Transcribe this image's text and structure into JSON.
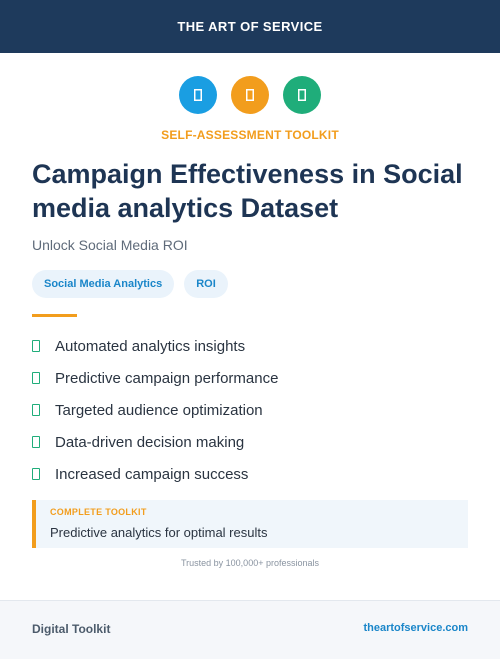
{
  "header": {
    "brand": "THE ART OF SERVICE"
  },
  "icons": [
    {
      "name": "toolkit-icon",
      "color": "#1a9ee2"
    },
    {
      "name": "checklist-icon",
      "color": "#f29d1d"
    },
    {
      "name": "analytics-icon",
      "color": "#1fad7a"
    }
  ],
  "eyebrow": "SELF-ASSESSMENT TOOLKIT",
  "title": "Campaign Effectiveness in Social media analytics Dataset",
  "subtitle": "Unlock Social Media ROI",
  "tags": [
    "Social Media Analytics",
    "ROI"
  ],
  "features": [
    "Automated analytics insights",
    "Predictive campaign performance",
    "Targeted audience optimization",
    "Data-driven decision making",
    "Increased campaign success"
  ],
  "callout": {
    "label": "COMPLETE TOOLKIT",
    "text": "Predictive analytics for optimal results"
  },
  "trusted": "Trusted by 100,000+ professionals",
  "footer": {
    "left": "Digital Toolkit",
    "right": "theartofservice.com"
  },
  "colors": {
    "navy": "#1e3a5c",
    "orange": "#f29d1d",
    "blue": "#1a9ee2",
    "green": "#1fad7a"
  }
}
